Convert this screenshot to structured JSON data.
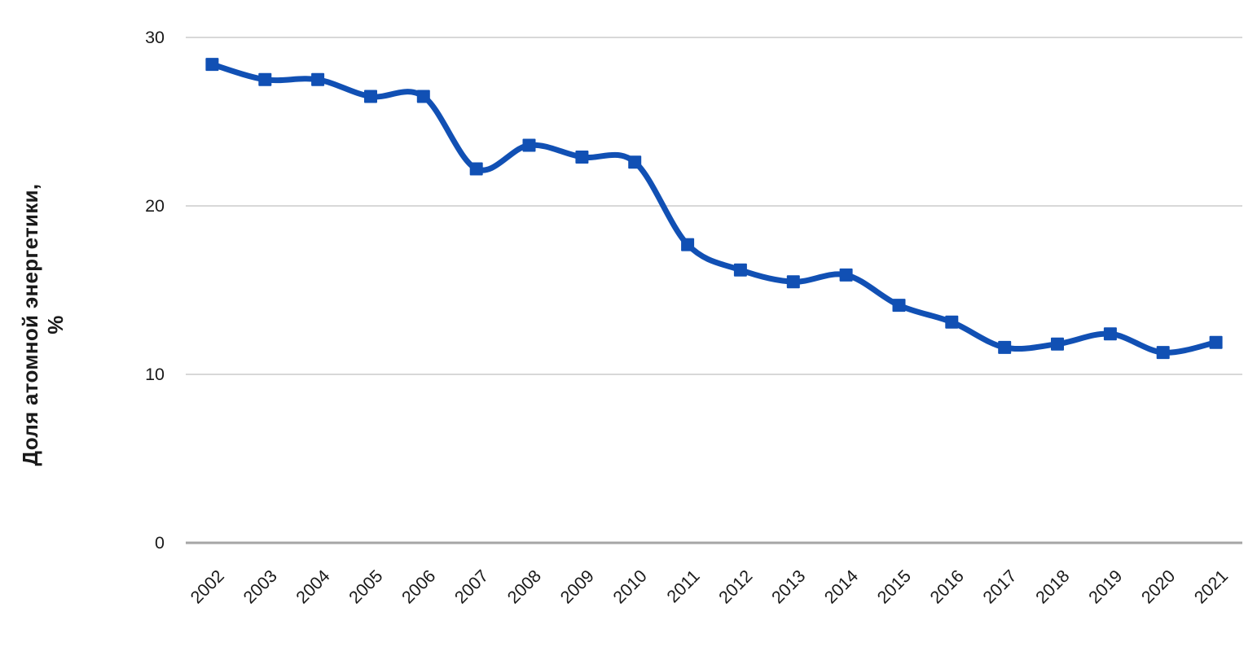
{
  "chart_data": {
    "type": "line",
    "title": "",
    "ylabel": "Доля атомной энергетики, %",
    "ylabel_lines": [
      "Доля атомной энергетики,",
      "%"
    ],
    "xlabel": "",
    "categories": [
      "2002",
      "2003",
      "2004",
      "2005",
      "2006",
      "2007",
      "2008",
      "2009",
      "2010",
      "2011",
      "2012",
      "2013",
      "2014",
      "2015",
      "2016",
      "2017",
      "2018",
      "2019",
      "2020",
      "2021"
    ],
    "series": [
      {
        "name": "Доля атомной энергетики, %",
        "values": [
          28.4,
          27.5,
          27.5,
          26.5,
          26.5,
          22.2,
          23.6,
          22.9,
          22.6,
          17.7,
          16.2,
          15.5,
          15.9,
          14.1,
          13.1,
          11.6,
          11.8,
          12.4,
          11.3,
          11.9
        ]
      }
    ],
    "ylim": [
      0,
      30
    ],
    "yticks": [
      0,
      10,
      20,
      30
    ],
    "x_tick_rotation_deg": -45,
    "grid": "horizontal-only",
    "legend": "none",
    "smooth_line": true,
    "marker": "square",
    "colors": {
      "line": "#1150b4",
      "gridline": "#d8d8d8",
      "axis_line": "#a6a6a6",
      "tick_text": "#1a1a1a",
      "axis_title_text": "#1a1a1a",
      "background": "#ffffff"
    }
  }
}
